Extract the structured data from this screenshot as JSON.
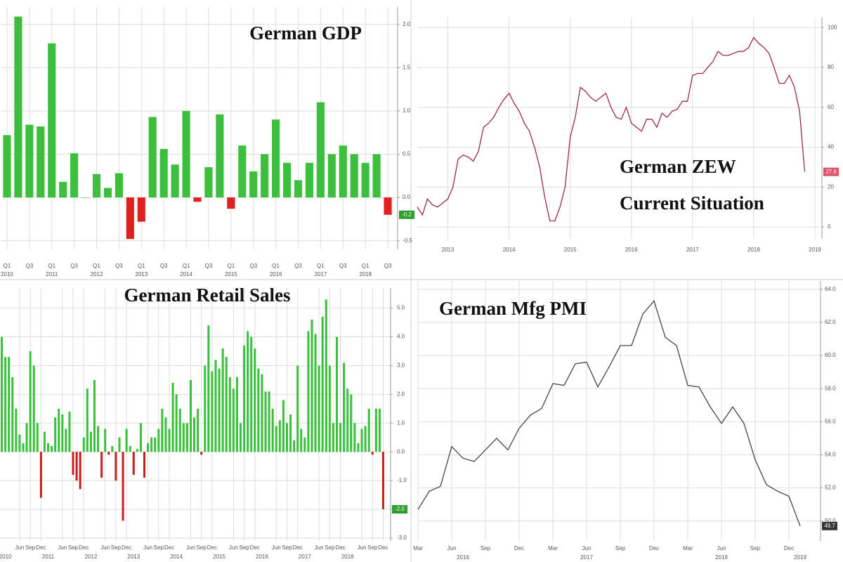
{
  "chart_data": [
    {
      "type": "bar",
      "title": "German GDP",
      "categories": [
        "Q1",
        null,
        "Q3",
        null,
        "Q1",
        null,
        "Q3",
        null,
        "Q1",
        null,
        "Q3",
        null,
        "Q1",
        null,
        "Q3",
        null,
        "Q1",
        null,
        "Q3",
        null,
        "Q1",
        null,
        "Q3",
        null,
        "Q1",
        null,
        "Q3",
        null,
        "Q1",
        null,
        "Q3",
        null,
        "Q1",
        null,
        "Q3"
      ],
      "year_labels": [
        "2010",
        null,
        null,
        null,
        "2011",
        null,
        null,
        null,
        "2012",
        null,
        null,
        null,
        "2013",
        null,
        null,
        null,
        "2014",
        null,
        null,
        null,
        "2015",
        null,
        null,
        null,
        "2016",
        null,
        null,
        null,
        "2017",
        null,
        null,
        null,
        "2018",
        null,
        null
      ],
      "values": [
        0.72,
        2.09,
        0.84,
        0.82,
        1.78,
        0.18,
        0.51,
        0.0,
        0.27,
        0.11,
        0.28,
        -0.48,
        -0.28,
        0.93,
        0.56,
        0.38,
        1.0,
        -0.05,
        0.35,
        0.96,
        -0.13,
        0.6,
        0.3,
        0.5,
        0.9,
        0.4,
        0.2,
        0.4,
        1.1,
        0.5,
        0.6,
        0.5,
        0.4,
        0.5,
        -0.2
      ],
      "color": "#3cbf3c",
      "negative_color": "#e0201f",
      "ylim": [
        -0.6,
        2.2
      ],
      "yticks": [
        -0.5,
        {
          "value": 0,
          "label": "0.0"
        },
        0.5,
        {
          "value": 1,
          "label": "1.0"
        },
        1.5,
        {
          "value": 2,
          "label": "2.0"
        }
      ],
      "last_label": "-0.2",
      "last_label_color": "#2e9e2e",
      "grid": true
    },
    {
      "type": "line",
      "title": [
        "German ZEW",
        "Current Situation"
      ],
      "categories": [
        null,
        null,
        null,
        null,
        null,
        null,
        "2013",
        null,
        null,
        null,
        null,
        null,
        null,
        null,
        null,
        null,
        null,
        null,
        "2014",
        null,
        null,
        null,
        null,
        null,
        null,
        null,
        null,
        null,
        null,
        null,
        "2015",
        null,
        null,
        null,
        null,
        null,
        null,
        null,
        null,
        null,
        null,
        null,
        "2016",
        null,
        null,
        null,
        null,
        null,
        null,
        null,
        null,
        null,
        null,
        null,
        "2017",
        null,
        null,
        null,
        null,
        null,
        null,
        null,
        null,
        null,
        null,
        null,
        "2018",
        null,
        null,
        null,
        null,
        null,
        null,
        null,
        null,
        null,
        null,
        null,
        "2019"
      ],
      "values": [
        10,
        6,
        14,
        11,
        10,
        12,
        14,
        20,
        34,
        36,
        35,
        33,
        38,
        50,
        52,
        55,
        60,
        64,
        67,
        62,
        58,
        52,
        48,
        40,
        30,
        15,
        3,
        3,
        10,
        20,
        45,
        55,
        70,
        68,
        65,
        63,
        65,
        67,
        60,
        55,
        54,
        60,
        52,
        50,
        48,
        54,
        54,
        50,
        57,
        55,
        58,
        59,
        63,
        63,
        76,
        77,
        77,
        80,
        83,
        88,
        86,
        86,
        87,
        88,
        88,
        90,
        95,
        92,
        90,
        87,
        80,
        72,
        72,
        76,
        70,
        58,
        27.6,
        null,
        null
      ],
      "color": "#9b2a45",
      "ylim": [
        -6,
        105
      ],
      "yticks": [
        0,
        20,
        40,
        60,
        80,
        100
      ],
      "last_label": "27.6",
      "last_label_color": "#e0506a",
      "grid": true
    },
    {
      "type": "bar",
      "title": "German Retail Sales",
      "categories": [
        null,
        null,
        null,
        null,
        null,
        "Jun",
        null,
        null,
        "Sep",
        null,
        null,
        "Dec",
        null,
        null,
        null,
        null,
        null,
        "Jun",
        null,
        null,
        "Sep",
        null,
        null,
        "Dec",
        null,
        null,
        null,
        null,
        null,
        "Jun",
        null,
        null,
        "Sep",
        null,
        null,
        "Dec",
        null,
        null,
        null,
        null,
        null,
        "Jun",
        null,
        null,
        "Sep",
        null,
        null,
        "Dec",
        null,
        null,
        null,
        null,
        null,
        "Jun",
        null,
        null,
        "Sep",
        null,
        null,
        "Dec",
        null,
        null,
        null,
        null,
        null,
        "Jun",
        null,
        null,
        "Sep",
        null,
        null,
        "Dec",
        null,
        null,
        null,
        null,
        null,
        "Jun",
        null,
        null,
        "Sep",
        null,
        null,
        "Dec",
        null,
        null,
        null,
        null,
        null,
        "Jun",
        null,
        null,
        "Sep",
        null,
        null,
        "Dec",
        null,
        null,
        null,
        null,
        null,
        "Jun",
        null,
        null,
        "Sep",
        null,
        null,
        "Dec"
      ],
      "year_labels": [
        null,
        "2010",
        null,
        null,
        null,
        null,
        null,
        null,
        null,
        null,
        null,
        null,
        null,
        "2011",
        null,
        null,
        null,
        null,
        null,
        null,
        null,
        null,
        null,
        null,
        null,
        "2012",
        null,
        null,
        null,
        null,
        null,
        null,
        null,
        null,
        null,
        null,
        null,
        "2013",
        null,
        null,
        null,
        null,
        null,
        null,
        null,
        null,
        null,
        null,
        null,
        "2014",
        null,
        null,
        null,
        null,
        null,
        null,
        null,
        null,
        null,
        null,
        null,
        "2015",
        null,
        null,
        null,
        null,
        null,
        null,
        null,
        null,
        null,
        null,
        null,
        "2016",
        null,
        null,
        null,
        null,
        null,
        null,
        null,
        null,
        null,
        null,
        null,
        "2017",
        null,
        null,
        null,
        null,
        null,
        null,
        null,
        null,
        null,
        null,
        null,
        "2018",
        null,
        null,
        null,
        null,
        null,
        null,
        null,
        null,
        null,
        null
      ],
      "values": [
        4.0,
        3.3,
        3.3,
        2.6,
        1.5,
        0.6,
        0.3,
        1.0,
        3.5,
        3.0,
        1.0,
        -1.6,
        0.7,
        0.3,
        0.2,
        1.2,
        1.5,
        1.3,
        0.8,
        1.4,
        -0.8,
        -1.0,
        -1.3,
        0.5,
        2.2,
        0.7,
        2.5,
        0.9,
        -0.9,
        0.8,
        -0.1,
        0.2,
        -1.0,
        0.5,
        -2.4,
        0.8,
        0.2,
        -0.8,
        0.1,
        1.0,
        -0.9,
        0.3,
        0.5,
        0.5,
        0.8,
        1.5,
        1.2,
        0.8,
        2.4,
        2.0,
        1.5,
        1.0,
        1.0,
        2.5,
        1.2,
        1.5,
        -0.1,
        3.0,
        4.4,
        2.8,
        3.2,
        2.9,
        3.6,
        3.3,
        2.6,
        2.2,
        2.6,
        1.0,
        3.7,
        4.2,
        4.0,
        3.6,
        2.9,
        2.7,
        2.1,
        2.1,
        1.5,
        0.9,
        1.1,
        1.8,
        1.0,
        1.3,
        0.4,
        3.0,
        0.8,
        0.5,
        4.2,
        4.6,
        4.1,
        3.0,
        4.7,
        5.3,
        3.0,
        1.0,
        4.0,
        1.0,
        3.1,
        2.2,
        2.0,
        1.0,
        0.3,
        0.8,
        0.9,
        1.5,
        -0.1,
        1.5,
        1.5,
        -2.0
      ],
      "color": "#3cbf3c",
      "negative_color": "#c8201f",
      "ylim": [
        -3.1,
        5.7
      ],
      "yticks": [
        {
          "value": -3,
          "label": "-3.0"
        },
        {
          "value": -2,
          "label": "-2.0"
        },
        {
          "value": -1,
          "label": "-1.0"
        },
        {
          "value": 0,
          "label": "0.0"
        },
        {
          "value": 1,
          "label": "1.0"
        },
        {
          "value": 2,
          "label": "2.0"
        },
        {
          "value": 3,
          "label": "3.0"
        },
        {
          "value": 4,
          "label": "4.0"
        },
        {
          "value": 5,
          "label": "5.0"
        }
      ],
      "last_label": "-2.0",
      "last_label_color": "#2e9e2e",
      "grid": true
    },
    {
      "type": "line",
      "title": "German Mfg PMI",
      "categories": [
        "Mar",
        null,
        null,
        "Jun",
        null,
        null,
        "Sep",
        null,
        null,
        "Dec",
        null,
        null,
        "Mar",
        null,
        null,
        "Jun",
        null,
        null,
        "Sep",
        null,
        null,
        "Dec",
        null,
        null,
        "Mar",
        null,
        null,
        "Jun",
        null,
        null,
        "Sep",
        null,
        null,
        "Dec",
        null
      ],
      "year_labels": [
        null,
        null,
        null,
        null,
        "2016",
        null,
        null,
        null,
        null,
        null,
        null,
        null,
        null,
        null,
        null,
        "2017",
        null,
        null,
        null,
        null,
        null,
        null,
        null,
        null,
        null,
        null,
        null,
        "2018",
        null,
        null,
        null,
        null,
        null,
        null,
        "2019"
      ],
      "values": [
        50.7,
        51.8,
        52.1,
        54.5,
        53.8,
        53.6,
        54.3,
        55.0,
        54.3,
        55.6,
        56.4,
        56.8,
        58.3,
        58.2,
        59.5,
        59.6,
        58.1,
        59.3,
        60.6,
        60.6,
        62.5,
        63.3,
        61.1,
        60.6,
        58.2,
        58.1,
        56.9,
        55.9,
        56.9,
        55.9,
        53.7,
        52.2,
        51.8,
        51.5,
        49.7
      ],
      "color": "#444444",
      "ylim": [
        48.8,
        64.5
      ],
      "yticks": [
        {
          "value": 50,
          "label": "50.0"
        },
        {
          "value": 52,
          "label": "52.0"
        },
        {
          "value": 54,
          "label": "54.0"
        },
        {
          "value": 56,
          "label": "56.0"
        },
        {
          "value": 58,
          "label": "58.0"
        },
        {
          "value": 60,
          "label": "60.0"
        },
        {
          "value": 62,
          "label": "62.0"
        },
        {
          "value": 64,
          "label": "64.0"
        }
      ],
      "last_label": "49.7",
      "last_label_color": "#333333",
      "grid": true
    }
  ]
}
